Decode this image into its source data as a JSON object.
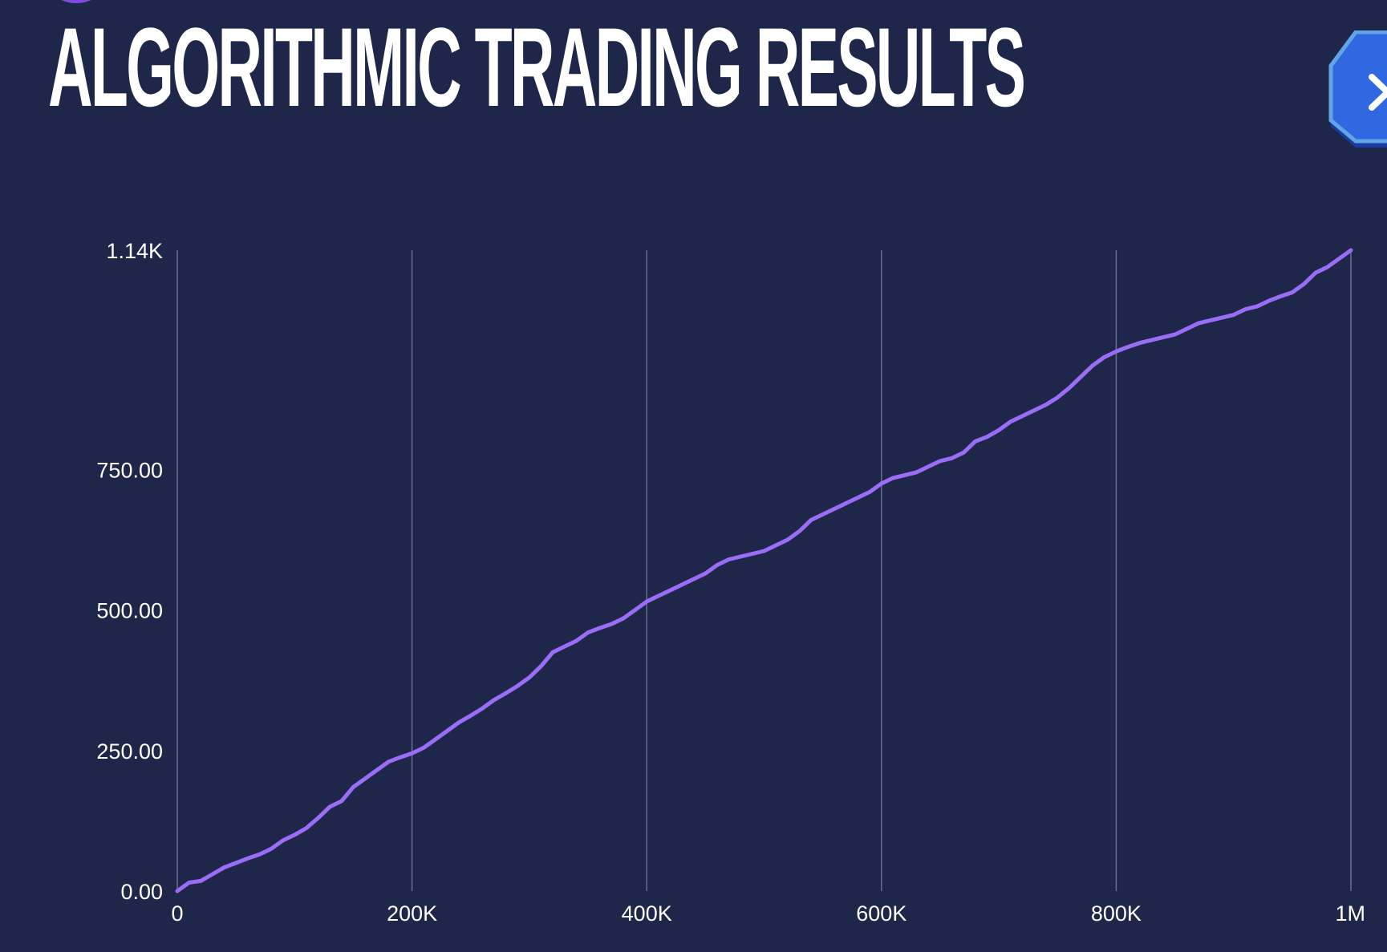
{
  "header": {
    "title": "ALGORITHMIC TRADING RESULTS",
    "close_icon": "close-icon"
  },
  "colors": {
    "background": "#1e2749",
    "line": "#9b6cf5",
    "grid": "#67708f",
    "close_button": "#2f68e0",
    "close_button_edge": "#62a5e6",
    "badge": "#7c4be0"
  },
  "chart_data": {
    "type": "line",
    "title": "ALGORITHMIC TRADING RESULTS",
    "xlabel": "",
    "ylabel": "",
    "xlim": [
      0,
      1000000
    ],
    "ylim": [
      0,
      1140
    ],
    "grid": {
      "vertical": true,
      "horizontal": false
    },
    "x_ticks": [
      {
        "value": 0,
        "label": "0"
      },
      {
        "value": 200000,
        "label": "200K"
      },
      {
        "value": 400000,
        "label": "400K"
      },
      {
        "value": 600000,
        "label": "600K"
      },
      {
        "value": 800000,
        "label": "800K"
      },
      {
        "value": 1000000,
        "label": "1M"
      }
    ],
    "y_ticks": [
      {
        "value": 0,
        "label": "0.00"
      },
      {
        "value": 250,
        "label": "250.00"
      },
      {
        "value": 500,
        "label": "500.00"
      },
      {
        "value": 750,
        "label": "750.00"
      },
      {
        "value": 1140,
        "label": "1.14K"
      }
    ],
    "series": [
      {
        "x": [
          0,
          10000,
          20000,
          30000,
          40000,
          50000,
          60000,
          70000,
          80000,
          90000,
          100000,
          110000,
          120000,
          130000,
          140000,
          150000,
          160000,
          170000,
          180000,
          190000,
          200000,
          210000,
          220000,
          230000,
          240000,
          250000,
          260000,
          270000,
          280000,
          290000,
          300000,
          310000,
          320000,
          330000,
          340000,
          350000,
          360000,
          370000,
          380000,
          390000,
          400000,
          410000,
          420000,
          430000,
          440000,
          450000,
          460000,
          470000,
          480000,
          490000,
          500000,
          510000,
          520000,
          530000,
          540000,
          550000,
          560000,
          570000,
          580000,
          590000,
          600000,
          610000,
          620000,
          630000,
          640000,
          650000,
          660000,
          670000,
          680000,
          690000,
          700000,
          710000,
          720000,
          730000,
          740000,
          750000,
          760000,
          770000,
          780000,
          790000,
          800000,
          810000,
          820000,
          830000,
          840000,
          850000,
          860000,
          870000,
          880000,
          890000,
          900000,
          910000,
          920000,
          930000,
          940000,
          950000,
          960000,
          970000,
          980000,
          990000,
          1000000
        ],
        "y": [
          0,
          15,
          18,
          30,
          42,
          50,
          58,
          65,
          75,
          90,
          100,
          112,
          130,
          150,
          160,
          185,
          200,
          215,
          230,
          238,
          245,
          255,
          270,
          285,
          300,
          312,
          325,
          340,
          352,
          365,
          380,
          400,
          425,
          435,
          445,
          460,
          468,
          475,
          485,
          500,
          515,
          525,
          535,
          545,
          555,
          565,
          580,
          590,
          595,
          600,
          605,
          615,
          625,
          640,
          660,
          670,
          680,
          690,
          700,
          710,
          725,
          735,
          740,
          745,
          755,
          765,
          770,
          780,
          800,
          808,
          820,
          835,
          845,
          855,
          865,
          878,
          895,
          915,
          935,
          950,
          960,
          968,
          975,
          980,
          985,
          990,
          1000,
          1010,
          1015,
          1020,
          1025,
          1035,
          1040,
          1050,
          1058,
          1065,
          1080,
          1100,
          1110,
          1125,
          1140
        ]
      }
    ]
  }
}
